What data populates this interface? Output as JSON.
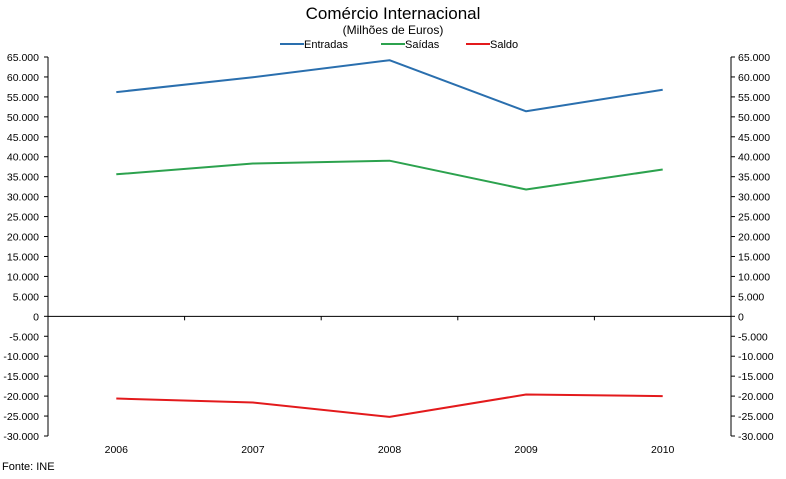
{
  "chart_data": {
    "type": "line",
    "title": "Comércio Internacional",
    "subtitle": "(Milhões de Euros)",
    "categories": [
      "2006",
      "2007",
      "2008",
      "2009",
      "2010"
    ],
    "series": [
      {
        "name": "Entradas",
        "color": "#2a6fae",
        "values": [
          56200,
          59900,
          64200,
          51400,
          56800
        ]
      },
      {
        "name": "Saídas",
        "color": "#2ca24e",
        "values": [
          35600,
          38300,
          39000,
          31800,
          36800
        ]
      },
      {
        "name": "Saldo",
        "color": "#e31a1c",
        "values": [
          -20600,
          -21600,
          -25200,
          -19600,
          -20000
        ]
      }
    ],
    "ylim": [
      -30000,
      65000
    ],
    "ytick_step": 5000,
    "y_tick_labels": [
      "65.000",
      "60.000",
      "55.000",
      "50.000",
      "45.000",
      "40.000",
      "35.000",
      "30.000",
      "25.000",
      "20.000",
      "15.000",
      "10.000",
      "5.000",
      "0",
      "-5.000",
      "-10.000",
      "-15.000",
      "-20.000",
      "-25.000",
      "-30.000"
    ],
    "secondary_y_axis": true,
    "legend_position": "top",
    "grid": false
  },
  "footer": {
    "source": "Fonte: INE"
  }
}
